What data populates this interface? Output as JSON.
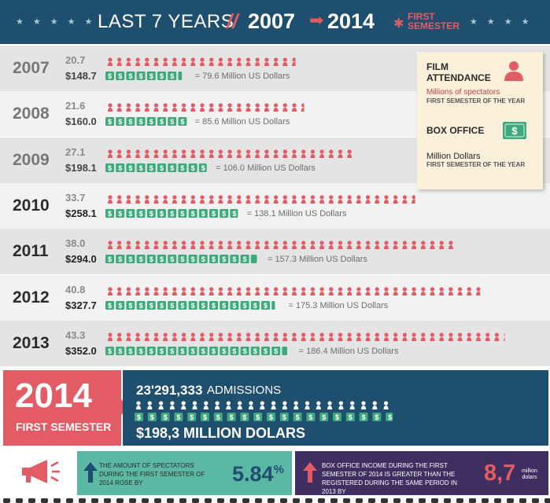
{
  "header": {
    "title": "LAST 7 YEARS",
    "separator": "//",
    "start_year": "2007",
    "end_year": "2014",
    "semester_label": "FIRST SEMESTER",
    "colors": {
      "navy": "#1f4f6e",
      "red": "#e35b64",
      "green": "#5ab8a4",
      "purple": "#3e2f60"
    }
  },
  "legend": {
    "film_attendance": "FILM ATTENDANCE",
    "attendance_unit": "Millions of spectators",
    "attendance_note": "FIRST SEMESTER OF THE YEAR",
    "box_office": "BOX OFFICE",
    "box_unit": "Million Dollars",
    "box_note": "FIRST SEMESTER OF THE YEAR",
    "person_icon": "person-icon",
    "money_icon": "money-bill-icon"
  },
  "chart_data": {
    "type": "bar",
    "categories": [
      "2007",
      "2008",
      "2009",
      "2010",
      "2011",
      "2012",
      "2013"
    ],
    "series": [
      {
        "name": "FILM ATTENDANCE",
        "values": [
          20.7,
          21.6,
          27.1,
          33.7,
          38.0,
          40.8,
          43.3
        ],
        "labels": [
          "20.7",
          "21.6",
          "27.1",
          "33.7",
          "38.0",
          "40.8",
          "43.3"
        ]
      },
      {
        "name": "BOX OFFICE",
        "values": [
          148.7,
          160.0,
          198.1,
          258.1,
          294.0,
          327.7,
          352.0
        ],
        "labels": [
          "$148.7",
          "$160.0",
          "$198.1",
          "$258.1",
          "$294.0",
          "$327.7",
          "$352.0"
        ]
      }
    ],
    "conversions": [
      "= 79.6 Million US Dollars",
      "= 85.6 Million US Dollars",
      "= 106.0 Million US Dollars",
      "= 138.1 Million US Dollars",
      "= 157.3 Million US Dollars",
      "= 175.3 Million US Dollars",
      "= 186.4 Million US Dollars"
    ]
  },
  "year_2014": {
    "year": "2014",
    "semester": "FIRST SEMESTER",
    "admissions_number": "23'291,333",
    "admissions_label": "ADMISSIONS",
    "admissions_value": 23.29,
    "box_office": "$198,3 MILLION DOLARS",
    "box_office_value": 198.3
  },
  "bottom": {
    "megaphone_icon": "megaphone-icon",
    "spectators_text": "THE AMOUNT OF SPECTATORS DURING THE FIRST SEMESTER OF 2014 ROSE BY",
    "spectators_value": "5.84",
    "spectators_unit": "%",
    "box_text": "BOX OFFICE INCOME DURING THE FIRST SEMESTER OF 2014 IS GREATER THAN THE REGISTERED DURING THE SAME PERIOD IN 2013 BY",
    "box_value": "8,7",
    "box_unit": "million dolars",
    "up_arrow_icon": "up-arrow-icon"
  }
}
